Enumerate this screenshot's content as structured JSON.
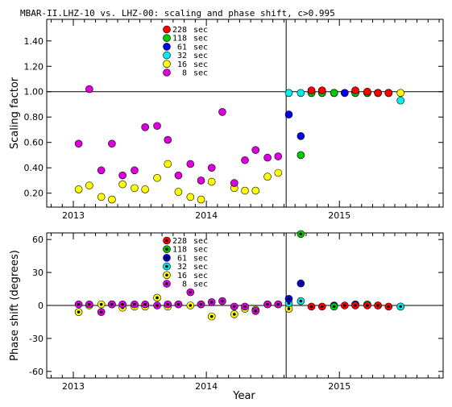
{
  "chart_data": {
    "title": "MBAR-II.LHZ-10 vs. LHZ-00: scaling and phase shift, c>0.995",
    "xlabel": "Year",
    "x_ticks": [
      2013,
      2014,
      2015
    ],
    "xlim": [
      2012.8,
      2015.78
    ],
    "event_line_x": 2014.6,
    "colors": {
      "228 sec": "#ff0000",
      "118 sec": "#00cc00",
      "61 sec": "#0000ee",
      "32 sec": "#00eeee",
      "16 sec": "#ffff00",
      "8 sec": "#dd00dd"
    },
    "legend": [
      "228 sec",
      "118 sec",
      "61 sec",
      "32 sec",
      "16 sec",
      "8 sec"
    ],
    "charts": [
      {
        "type": "scatter",
        "ylabel": "Scaling factor",
        "ylim": [
          0.09,
          1.57
        ],
        "y_ticks": [
          0.2,
          0.4,
          0.6,
          0.8,
          1.0,
          1.2,
          1.4
        ],
        "y_tick_labels": [
          "0.20",
          "0.40",
          "0.60",
          "0.80",
          "1.00",
          "1.20",
          "1.40"
        ],
        "reference_y": 1.0,
        "series": [
          {
            "name": "16 sec",
            "points": [
              [
                2013.04,
                0.23
              ],
              [
                2013.12,
                0.26
              ],
              [
                2013.21,
                0.17
              ],
              [
                2013.29,
                0.15
              ],
              [
                2013.37,
                0.27
              ],
              [
                2013.46,
                0.24
              ],
              [
                2013.54,
                0.23
              ],
              [
                2013.63,
                0.32
              ],
              [
                2013.71,
                0.43
              ],
              [
                2013.79,
                0.21
              ],
              [
                2013.88,
                0.17
              ],
              [
                2013.96,
                0.15
              ],
              [
                2014.04,
                0.29
              ],
              [
                2014.21,
                0.24
              ],
              [
                2014.29,
                0.22
              ],
              [
                2014.37,
                0.22
              ],
              [
                2014.46,
                0.33
              ],
              [
                2014.54,
                0.36
              ],
              [
                2015.46,
                0.99
              ]
            ]
          },
          {
            "name": "8 sec",
            "points": [
              [
                2013.04,
                0.59
              ],
              [
                2013.12,
                1.02
              ],
              [
                2013.21,
                0.38
              ],
              [
                2013.29,
                0.59
              ],
              [
                2013.37,
                0.34
              ],
              [
                2013.46,
                0.38
              ],
              [
                2013.54,
                0.72
              ],
              [
                2013.63,
                0.73
              ],
              [
                2013.71,
                0.62
              ],
              [
                2013.79,
                0.34
              ],
              [
                2013.88,
                0.43
              ],
              [
                2013.96,
                0.3
              ],
              [
                2014.04,
                0.4
              ],
              [
                2014.12,
                0.84
              ],
              [
                2014.21,
                0.28
              ],
              [
                2014.29,
                0.46
              ],
              [
                2014.37,
                0.54
              ],
              [
                2014.46,
                0.48
              ],
              [
                2014.54,
                0.49
              ]
            ]
          },
          {
            "name": "32 sec",
            "points": [
              [
                2014.62,
                0.99
              ],
              [
                2014.71,
                0.99
              ],
              [
                2014.79,
                0.99
              ],
              [
                2014.87,
                0.99
              ],
              [
                2014.96,
                0.99
              ],
              [
                2015.04,
                0.99
              ],
              [
                2015.12,
                0.99
              ],
              [
                2015.21,
                0.99
              ],
              [
                2015.29,
                0.99
              ],
              [
                2015.37,
                0.99
              ],
              [
                2015.46,
                0.93
              ]
            ]
          },
          {
            "name": "61 sec",
            "points": [
              [
                2014.62,
                0.82
              ],
              [
                2014.71,
                0.65
              ],
              [
                2014.79,
                0.99
              ],
              [
                2014.87,
                0.99
              ],
              [
                2014.96,
                0.99
              ],
              [
                2015.04,
                0.99
              ],
              [
                2015.12,
                0.99
              ],
              [
                2015.21,
                0.99
              ],
              [
                2015.29,
                0.99
              ],
              [
                2015.37,
                0.99
              ]
            ]
          },
          {
            "name": "118 sec",
            "points": [
              [
                2014.71,
                0.5
              ],
              [
                2014.79,
                0.99
              ],
              [
                2014.87,
                0.99
              ],
              [
                2014.96,
                0.99
              ],
              [
                2015.12,
                0.99
              ],
              [
                2015.21,
                0.99
              ],
              [
                2015.29,
                0.99
              ],
              [
                2015.37,
                0.99
              ]
            ]
          },
          {
            "name": "228 sec",
            "points": [
              [
                2014.79,
                1.01
              ],
              [
                2014.87,
                1.01
              ],
              [
                2015.12,
                1.01
              ],
              [
                2015.21,
                1.0
              ],
              [
                2015.29,
                0.99
              ],
              [
                2015.37,
                0.99
              ]
            ]
          }
        ]
      },
      {
        "type": "scatter",
        "ylabel": "Phase shift (degrees)",
        "ylim": [
          -66,
          66
        ],
        "y_ticks": [
          -60,
          -30,
          0,
          30,
          60
        ],
        "y_tick_labels": [
          "-60",
          "-30",
          "0",
          "30",
          "60"
        ],
        "reference_y": 0,
        "series": [
          {
            "name": "16 sec",
            "points": [
              [
                2013.04,
                -6
              ],
              [
                2013.12,
                0
              ],
              [
                2013.21,
                1
              ],
              [
                2013.29,
                1
              ],
              [
                2013.37,
                -2
              ],
              [
                2013.46,
                -1
              ],
              [
                2013.54,
                -1
              ],
              [
                2013.63,
                7
              ],
              [
                2013.71,
                -1
              ],
              [
                2013.79,
                1
              ],
              [
                2013.88,
                0
              ],
              [
                2013.96,
                1
              ],
              [
                2014.04,
                -10
              ],
              [
                2014.21,
                -8
              ],
              [
                2014.29,
                -3
              ],
              [
                2014.37,
                -4
              ],
              [
                2014.46,
                1
              ],
              [
                2014.54,
                1
              ],
              [
                2014.62,
                -3
              ],
              [
                2015.46,
                -1
              ]
            ]
          },
          {
            "name": "8 sec",
            "points": [
              [
                2013.04,
                1
              ],
              [
                2013.12,
                1
              ],
              [
                2013.21,
                -6
              ],
              [
                2013.29,
                1
              ],
              [
                2013.37,
                1
              ],
              [
                2013.46,
                1
              ],
              [
                2013.54,
                1
              ],
              [
                2013.63,
                0
              ],
              [
                2013.71,
                1
              ],
              [
                2013.79,
                1
              ],
              [
                2013.88,
                12
              ],
              [
                2013.96,
                1
              ],
              [
                2014.04,
                3
              ],
              [
                2014.12,
                4
              ],
              [
                2014.21,
                -1
              ],
              [
                2014.29,
                -1
              ],
              [
                2014.37,
                -5
              ],
              [
                2014.46,
                1
              ],
              [
                2014.54,
                1
              ]
            ]
          },
          {
            "name": "32 sec",
            "points": [
              [
                2014.62,
                2
              ],
              [
                2014.71,
                4
              ],
              [
                2015.46,
                -1
              ]
            ]
          },
          {
            "name": "61 sec",
            "points": [
              [
                2014.62,
                6
              ],
              [
                2014.71,
                20
              ],
              [
                2014.96,
                0
              ],
              [
                2015.12,
                1
              ]
            ]
          },
          {
            "name": "118 sec",
            "points": [
              [
                2014.71,
                65
              ],
              [
                2014.96,
                -1
              ],
              [
                2015.21,
                1
              ],
              [
                2015.29,
                0
              ]
            ]
          },
          {
            "name": "228 sec",
            "points": [
              [
                2014.79,
                -1
              ],
              [
                2014.87,
                -1
              ],
              [
                2015.04,
                0
              ],
              [
                2015.12,
                0
              ],
              [
                2015.21,
                0
              ],
              [
                2015.29,
                0
              ],
              [
                2015.37,
                -1
              ]
            ]
          }
        ]
      }
    ]
  }
}
